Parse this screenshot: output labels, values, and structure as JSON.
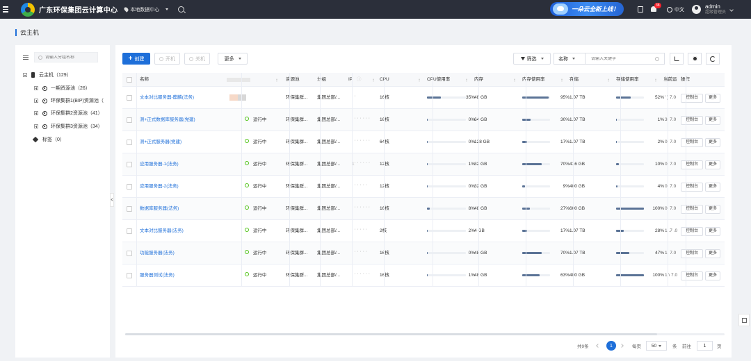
{
  "topbar": {
    "app_title": "广东环保集团云计算中心",
    "datacenter": "本地数据中心",
    "banner_text": "一朵云全新上线！",
    "notification_count": "38",
    "language": "中文",
    "user_name": "admin",
    "user_role": "超级管理员"
  },
  "page": {
    "title": "云主机"
  },
  "tree": {
    "search_placeholder": "请输入分组名称",
    "root": "云主机（129）",
    "pools": [
      "一期资源池（26）",
      "环保集群1(BIP)资源池（",
      "环保集群2资源池（41）",
      "环保集群3资源池（34）"
    ],
    "tags": "标签（0）"
  },
  "toolbar": {
    "create": "创建",
    "start": "开机",
    "stop": "关机",
    "more": "更多",
    "filter": "筛选",
    "search_field": "名称",
    "search_placeholder": "请输入关键字"
  },
  "table": {
    "headers": {
      "name": "名称",
      "pool": "资源池",
      "group": "分组",
      "ip": "IP",
      "cpu": "CPU",
      "cpu_usage": "CPU使用率",
      "memory": "内存",
      "mem_usage": "内存使用率",
      "storage": "存储",
      "storage_usage": "存储使用率",
      "current": "当前运",
      "ops": "操作"
    },
    "console_label": "控制台",
    "more_label": "更多",
    "rows": [
      {
        "name": "文本对比服务器-麒麟(法务)",
        "status": "",
        "pool": "环保集群...",
        "group": "集团总部/...",
        "ip": "' '",
        "cpu": "16核",
        "cpu_pct": 35,
        "cpu_text": "35%",
        "mem": "48 GB",
        "mem_pct": 95,
        "mem_text": "95%",
        "storage": "1.07 TB",
        "st_pct": 52,
        "st_text": "52%",
        "current": "' ) 7.0"
      },
      {
        "name": "测+正式数据库服务器(党建)",
        "status": "运行中",
        "pool": "环保集群...",
        "group": "集团总部/...",
        "ip": "' ' ' ' ' ' '",
        "cpu": "16核",
        "cpu_pct": 0,
        "cpu_text": "0%",
        "mem": "64 GB",
        "mem_pct": 30,
        "mem_text": "30%",
        "storage": "1.07 TB",
        "st_pct": 1,
        "st_text": "1%",
        "current": "3. 7.0"
      },
      {
        "name": "测+正式服务器(党建)",
        "status": "运行中",
        "pool": "环保集群...",
        "group": "集团总部/...",
        "ip": "' ' ' ' ' ' '",
        "cpu": "64核",
        "cpu_pct": 0,
        "cpu_text": "0%",
        "mem": "128 GB",
        "mem_pct": 17,
        "mem_text": "17%",
        "storage": "1.07 TB",
        "st_pct": 2,
        "st_text": "2%",
        "current": "0. 7.0"
      },
      {
        "name": "应用服务器-1(法务)",
        "status": "运行中",
        "pool": "环保集群...",
        "group": "集团总部/...",
        "ip": "1' ' ' ' ' '",
        "cpu": "12核",
        "cpu_pct": 1,
        "cpu_text": "1%",
        "mem": "32 GB",
        "mem_pct": 70,
        "mem_text": "70%",
        "storage": "416 GB",
        "st_pct": 10,
        "st_text": "10%",
        "current": "0. 7.0"
      },
      {
        "name": "应用服务器-2(法务)",
        "status": "运行中",
        "pool": "环保集群...",
        "group": "集团总部/...",
        "ip": "' ' ' ' ' '",
        "cpu": "12核",
        "cpu_pct": 0,
        "cpu_text": "0%",
        "mem": "32 GB",
        "mem_pct": 9,
        "mem_text": "9%",
        "storage": "400 GB",
        "st_pct": 4,
        "st_text": "4%",
        "current": "0. 7.0"
      },
      {
        "name": "数据库服务器(法务)",
        "status": "运行中",
        "pool": "环保集群...",
        "group": "集团总部/...",
        "ip": "' ' ' ' ' ' '",
        "cpu": "16核",
        "cpu_pct": 8,
        "cpu_text": "8%",
        "mem": "48 GB",
        "mem_pct": 27,
        "mem_text": "27%",
        "storage": "600 GB",
        "st_pct": 100,
        "st_text": "100%",
        "current": "0. 7.0"
      },
      {
        "name": "文本对比服务器(法务)",
        "status": "运行中",
        "pool": "环保集群...",
        "group": "集团总部/...",
        "ip": "' ' ' ' ' '",
        "cpu": "2核",
        "cpu_pct": 2,
        "cpu_text": "2%",
        "mem": "4 GB",
        "mem_pct": 17,
        "mem_text": "17%",
        "storage": "1.07 TB",
        "st_pct": 28,
        "st_text": "28%",
        "current": "1 .7 .0"
      },
      {
        "name": "功能服务器(法务)",
        "status": "运行中",
        "pool": "环保集群...",
        "group": "集团总部/...",
        "ip": "' ' ' ' ' '",
        "cpu": "16核",
        "cpu_pct": 0,
        "cpu_text": "0%",
        "mem": "48 GB",
        "mem_pct": 70,
        "mem_text": "70%",
        "storage": "1.07 TB",
        "st_pct": 47,
        "st_text": "47%",
        "current": "1. 7.0"
      },
      {
        "name": "服务器测试(法务)",
        "status": "运行中",
        "pool": "环保集群...",
        "group": "集团总部/...",
        "ip": "' ' ' ' ' ' '",
        "cpu": "16核",
        "cpu_pct": 1,
        "cpu_text": "1%",
        "mem": "48 GB",
        "mem_pct": 63,
        "mem_text": "63%",
        "storage": "400 GB",
        "st_pct": 100,
        "st_text": "100%",
        "current": "1 \\ 7.0"
      }
    ]
  },
  "pagination": {
    "total": "共9条",
    "current_page": "1",
    "per_page_label": "每页",
    "page_size": "50",
    "unit": "条",
    "goto_label": "前往",
    "goto_value": "1",
    "page_suffix": "页"
  },
  "colors": {
    "accent": "#1e6fd9",
    "topbar": "#2b2f3a",
    "bar": "#5b7396",
    "running": "#52c41a"
  }
}
